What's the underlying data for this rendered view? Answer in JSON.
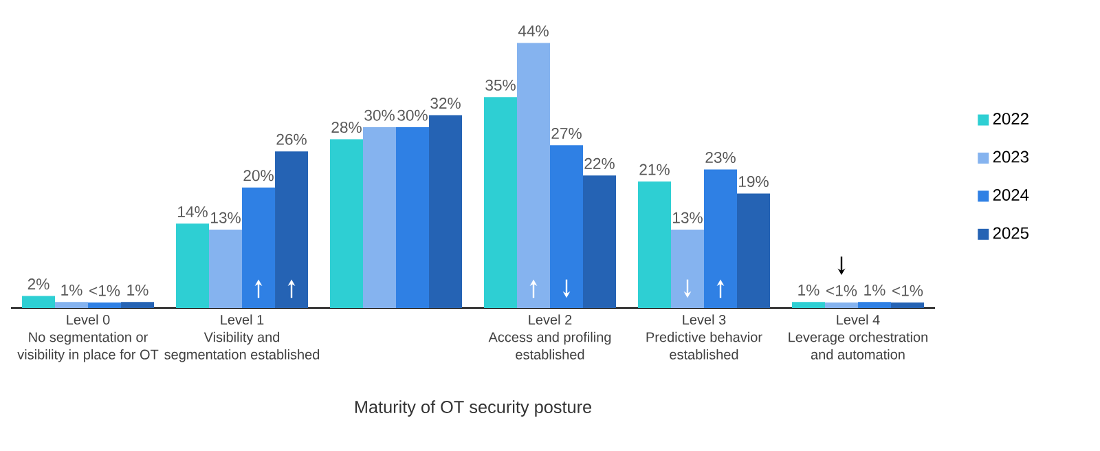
{
  "chart_data": {
    "type": "bar",
    "xlabel": "Maturity of OT security posture",
    "categories": [
      "Level 0\nNo segmentation or\nvisibility in place for OT",
      "Level 1\nVisibility and\nsegmentation established",
      null,
      "Level 2\nAccess and profiling\nestablished",
      "Level 3\nPredictive behavior\nestablished",
      "Level 4\nLeverage orchestration\nand automation"
    ],
    "series": [
      {
        "name": "2022",
        "color": "#2ecfd3",
        "values": [
          2,
          14,
          28,
          35,
          21,
          1
        ],
        "value_labels": [
          "2%",
          "14%",
          "28%",
          "35%",
          "21%",
          "1%"
        ]
      },
      {
        "name": "2023",
        "color": "#85b3ef",
        "values": [
          1,
          13,
          30,
          44,
          13,
          0.9
        ],
        "value_labels": [
          "1%",
          "13%",
          "30%",
          "44%",
          "13%",
          "<1%"
        ]
      },
      {
        "name": "2024",
        "color": "#2f80e4",
        "values": [
          0.9,
          20,
          30,
          27,
          23,
          1
        ],
        "value_labels": [
          "<1%",
          "20%",
          "30%",
          "27%",
          "23%",
          "1%"
        ]
      },
      {
        "name": "2025",
        "color": "#2563b4",
        "values": [
          1,
          26,
          32,
          22,
          19,
          0.9
        ],
        "value_labels": [
          "1%",
          "26%",
          "32%",
          "22%",
          "19%",
          "<1%"
        ]
      }
    ],
    "legend": "right"
  }
}
